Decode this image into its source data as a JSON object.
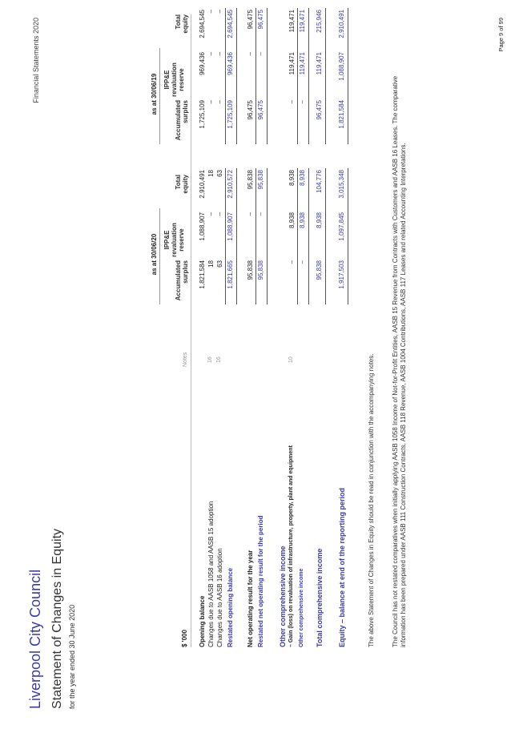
{
  "header": {
    "council": "Liverpool City Council",
    "title": "Statement of Changes in Equity",
    "subtitle": "for the year ended 30 June 2020",
    "doc_label": "Financial Statements 2020"
  },
  "table": {
    "unit": "$ '000",
    "notes_header": "Notes",
    "group_2020": "as at 30/06/20",
    "group_2019": "as at 30/06/19",
    "col1_a": "Accumulated",
    "col1_b": "surplus",
    "col2_a": "IPP&E",
    "col2_b": "revaluation",
    "col2_c": "reserve",
    "col3_a": "Total",
    "col3_b": "equity",
    "rows": [
      {
        "label": "Opening balance",
        "note": "",
        "v2020": [
          "1,821,584",
          "1,088,907",
          "2,910,491"
        ],
        "v2019": [
          "1,725,109",
          "969,436",
          "2,694,545"
        ]
      },
      {
        "label": "Changes due to AASB 1058 and AASB 15 adoption",
        "note": "16",
        "v2020": [
          "18",
          "–",
          "18"
        ],
        "v2019": [
          "–",
          "–",
          "–"
        ]
      },
      {
        "label": "Changes due to AASB 16 adoption",
        "note": "16",
        "v2020": [
          "63",
          "–",
          "63"
        ],
        "v2019": [
          "–",
          "–",
          "–"
        ]
      },
      {
        "label": "Restated opening balance",
        "note": "",
        "v2020": [
          "1,821,665",
          "1,088,907",
          "2,910,572"
        ],
        "v2019": [
          "1,725,109",
          "969,436",
          "2,694,545"
        ]
      },
      {
        "label": "Net operating result for the year",
        "note": "",
        "v2020": [
          "95,838",
          "–",
          "95,838"
        ],
        "v2019": [
          "96,475",
          "–",
          "96,475"
        ]
      },
      {
        "label": "Restated net operating result for the period",
        "note": "",
        "v2020": [
          "95,838",
          "–",
          "95,838"
        ],
        "v2019": [
          "96,475",
          "–",
          "96,475"
        ]
      },
      {
        "label": "Other comprehensive income",
        "note": "",
        "v2020": [
          "",
          "",
          ""
        ],
        "v2019": [
          "",
          "",
          ""
        ]
      },
      {
        "label": "– Gain (loss) on revaluation of infrastructure, property, plant and equipment",
        "note": "10",
        "v2020": [
          "–",
          "8,938",
          "8,938"
        ],
        "v2019": [
          "–",
          "119,471",
          "119,471"
        ]
      },
      {
        "label": "Other comprehensive income",
        "note": "",
        "v2020": [
          "–",
          "8,938",
          "8,938"
        ],
        "v2019": [
          "–",
          "119,471",
          "119,471"
        ]
      },
      {
        "label": "Total comprehensive income",
        "note": "",
        "v2020": [
          "95,838",
          "8,938",
          "104,776"
        ],
        "v2019": [
          "96,475",
          "119,471",
          "215,946"
        ]
      },
      {
        "label": "Equity – balance at end of the reporting period",
        "note": "",
        "v2020": [
          "1,917,503",
          "1,097,845",
          "3,015,348"
        ],
        "v2019": [
          "1,821,584",
          "1,088,907",
          "2,910,491"
        ]
      }
    ]
  },
  "footer": {
    "line1": "The above Statement of Changes in Equity should be read in conjunction with the accompanying notes.",
    "line2a": "The Council has not restated comparatives when initially applying AASB 1058 Income of Not-for-Profit Entities, AASB 15 Revenue from Contracts with Customers and AASB 16 Leases. The comparative",
    "line2b": "information has been prepared under AASB 111 Construction Contracts, AASB 118 Revenue, AASB 1004 Contributions, AASB 117 Leases and related Accounting Interpretations."
  },
  "page": "Page 9 of 99"
}
